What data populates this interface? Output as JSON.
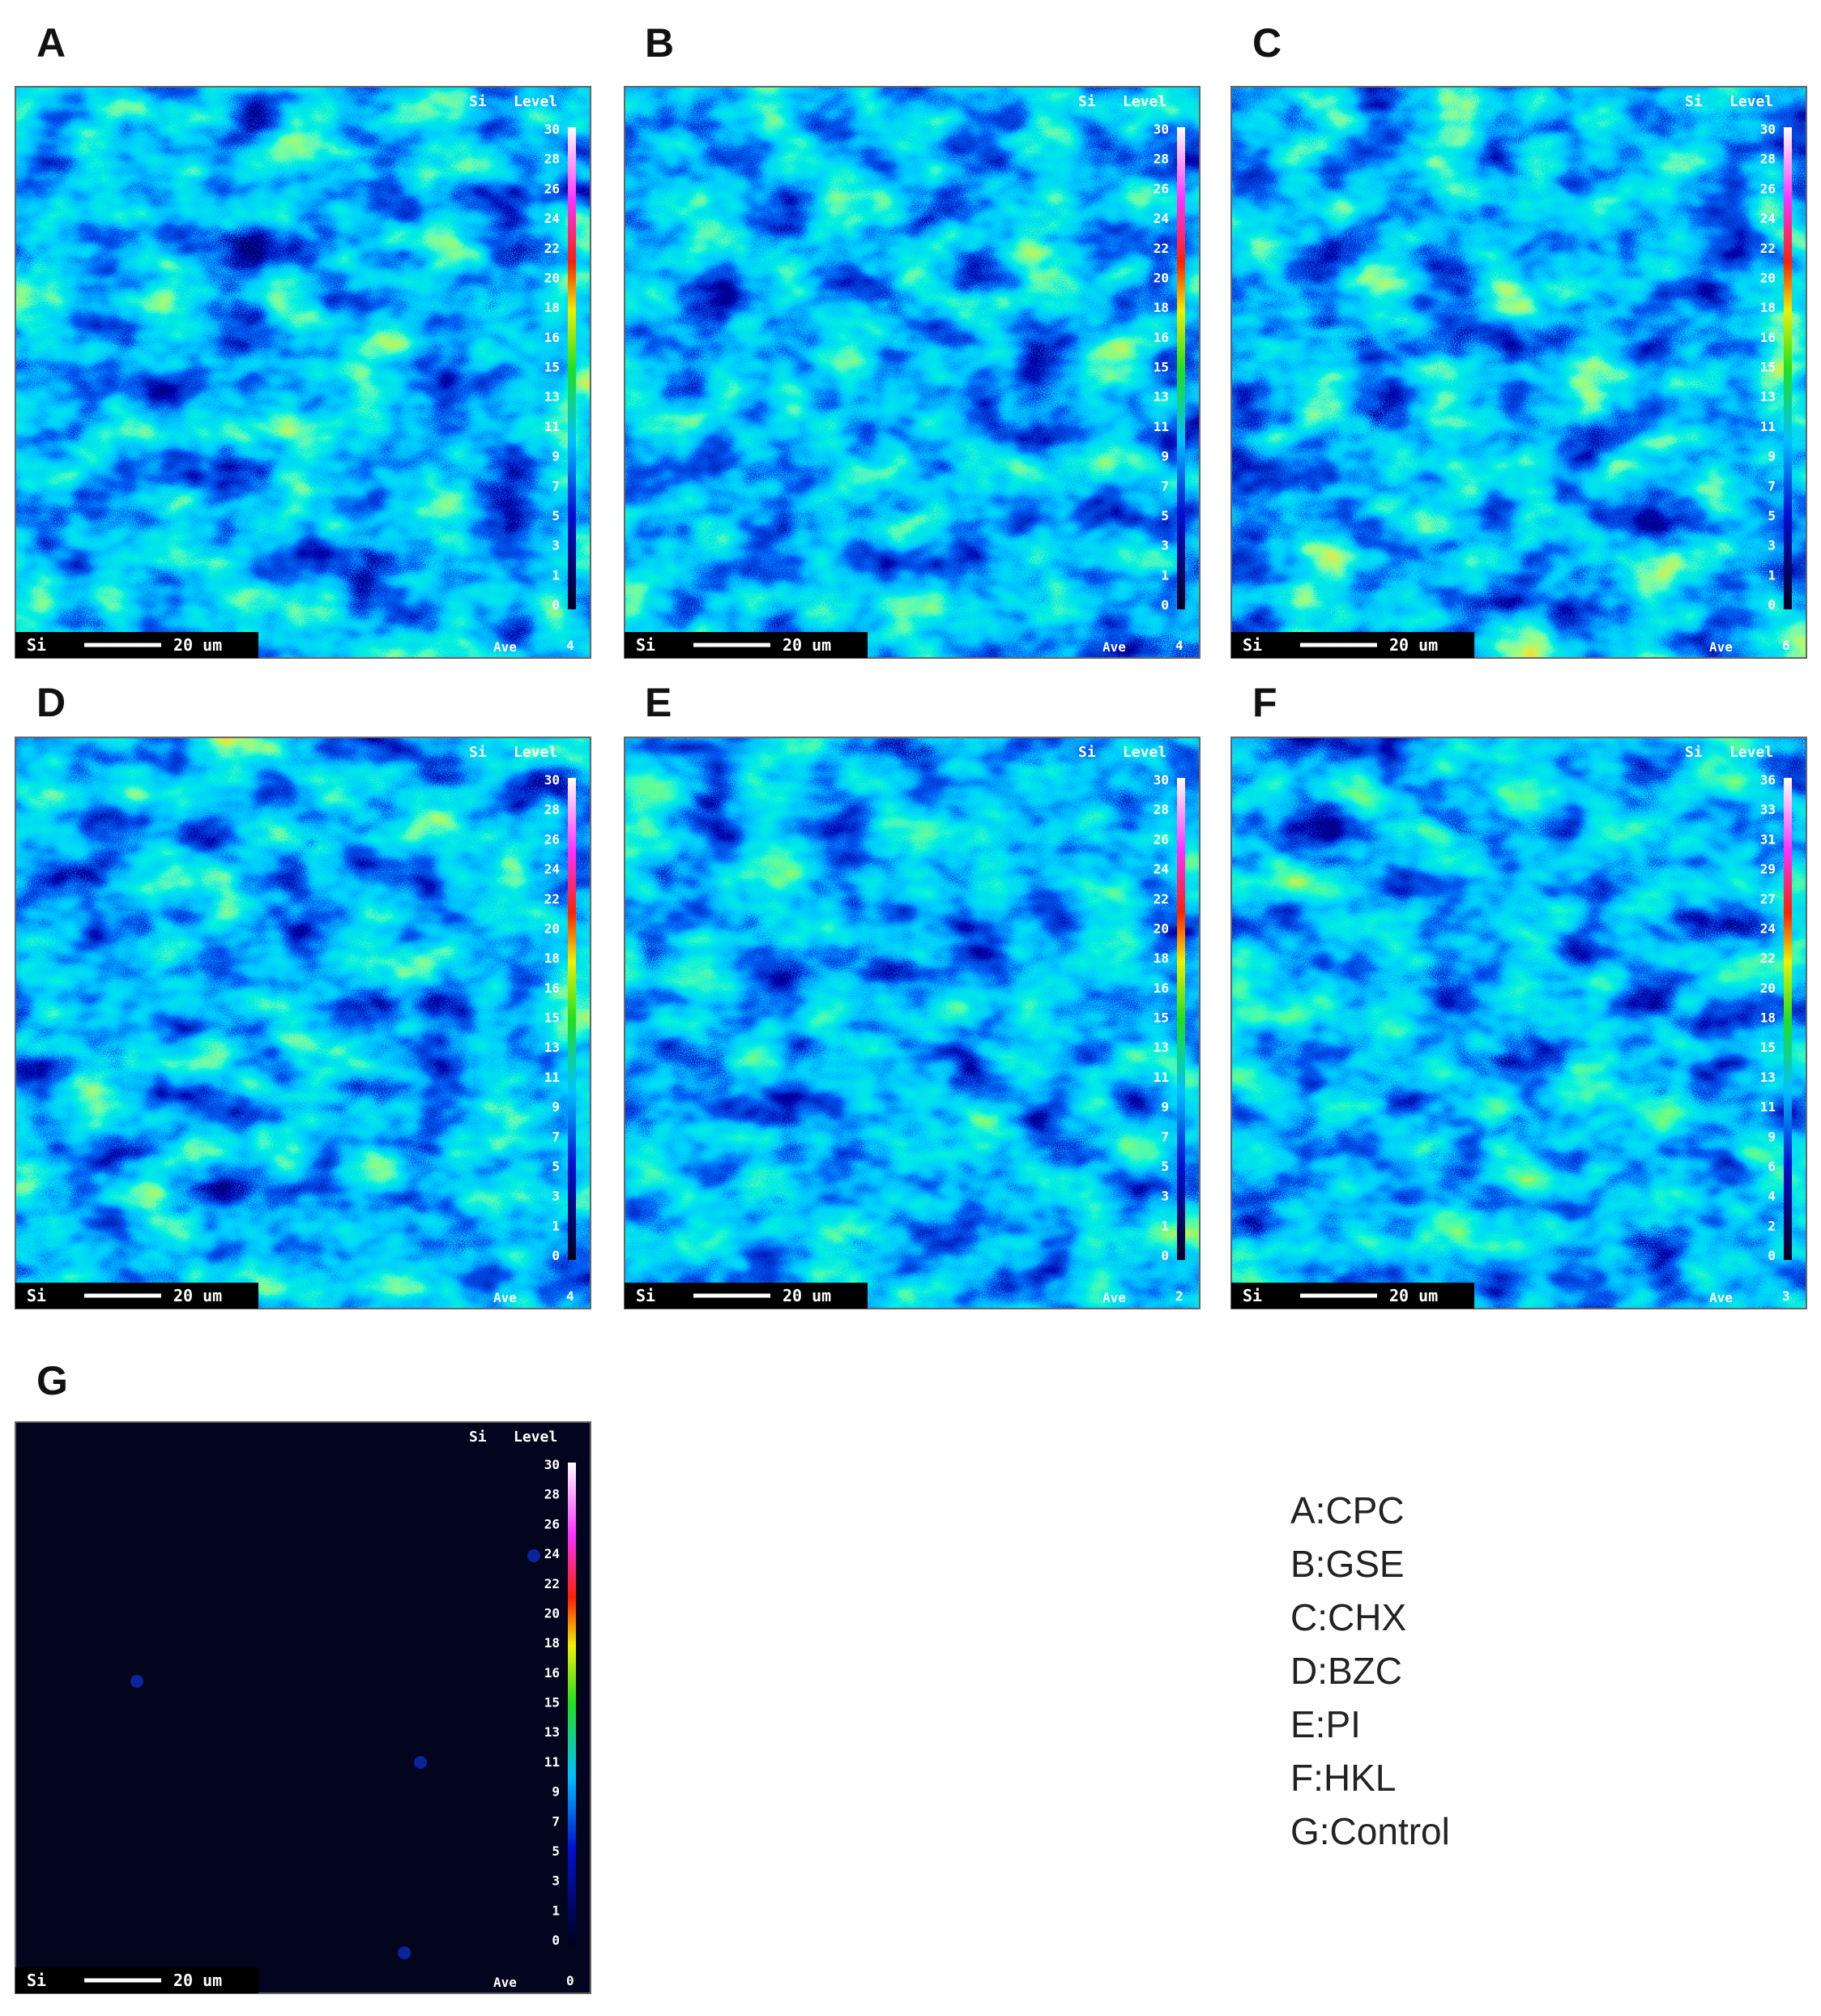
{
  "panels": [
    {
      "label": "A",
      "element_top": "Si",
      "level_title": "Level",
      "scale_labels": [
        30,
        28,
        26,
        24,
        22,
        20,
        18,
        16,
        15,
        13,
        11,
        9,
        7,
        5,
        3,
        1,
        0
      ],
      "element_bottom": "Si",
      "scale_bar": "20 um",
      "ave": "Ave",
      "corner_value": 4
    },
    {
      "label": "B",
      "element_top": "Si",
      "level_title": "Level",
      "scale_labels": [
        30,
        28,
        26,
        24,
        22,
        20,
        18,
        16,
        15,
        13,
        11,
        9,
        7,
        5,
        3,
        1,
        0
      ],
      "element_bottom": "Si",
      "scale_bar": "20 um",
      "ave": "Ave",
      "corner_value": 4
    },
    {
      "label": "C",
      "element_top": "Si",
      "level_title": "Level",
      "scale_labels": [
        30,
        28,
        26,
        24,
        22,
        20,
        18,
        16,
        15,
        13,
        11,
        9,
        7,
        5,
        3,
        1,
        0
      ],
      "element_bottom": "Si",
      "scale_bar": "20 um",
      "ave": "Ave",
      "corner_value": 6
    },
    {
      "label": "D",
      "element_top": "Si",
      "level_title": "Level",
      "scale_labels": [
        30,
        28,
        26,
        24,
        22,
        20,
        18,
        16,
        15,
        13,
        11,
        9,
        7,
        5,
        3,
        1,
        0
      ],
      "element_bottom": "Si",
      "scale_bar": "20 um",
      "ave": "Ave",
      "corner_value": 4
    },
    {
      "label": "E",
      "element_top": "Si",
      "level_title": "Level",
      "scale_labels": [
        30,
        28,
        26,
        24,
        22,
        20,
        18,
        16,
        15,
        13,
        11,
        9,
        7,
        5,
        3,
        1,
        0
      ],
      "element_bottom": "Si",
      "scale_bar": "20 um",
      "ave": "Ave",
      "corner_value": 2
    },
    {
      "label": "F",
      "element_top": "Si",
      "level_title": "Level",
      "scale_labels": [
        36,
        33,
        31,
        29,
        27,
        24,
        22,
        20,
        18,
        15,
        13,
        11,
        9,
        6,
        4,
        2,
        0
      ],
      "element_bottom": "Si",
      "scale_bar": "20 um",
      "ave": "Ave",
      "corner_value": 3
    },
    {
      "label": "G",
      "element_top": "Si",
      "level_title": "Level",
      "scale_labels": [
        30,
        28,
        26,
        24,
        22,
        20,
        18,
        16,
        15,
        13,
        11,
        9,
        7,
        5,
        3,
        1,
        0
      ],
      "element_bottom": "Si",
      "scale_bar": "20 um",
      "ave": "Ave",
      "corner_value": 0
    }
  ],
  "legend": [
    "A:CPC",
    "B:GSE",
    "C:CHX",
    "D:BZC",
    "E:PI",
    "F:HKL",
    "G:Control"
  ]
}
